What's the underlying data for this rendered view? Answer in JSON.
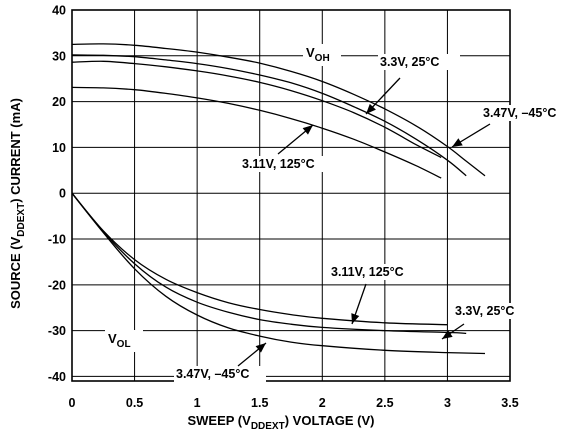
{
  "chart_data": {
    "type": "line",
    "xlabel": {
      "prefix": "SWEEP (V",
      "sub": "DDEXT",
      "suffix": ") VOLTAGE (V)"
    },
    "ylabel": {
      "prefix": "SOURCE  (V",
      "sub": "DDEXT",
      "suffix": ") CURRENT (mA)"
    },
    "xlim": [
      0,
      3.5
    ],
    "ylim": [
      -41,
      40
    ],
    "x_ticks": [
      "0",
      "0.5",
      "1",
      "1.5",
      "2",
      "2.5",
      "3",
      "3.5"
    ],
    "y_ticks": [
      "40",
      "30",
      "20",
      "10",
      "0",
      "-10",
      "-20",
      "-30",
      "-40"
    ],
    "grid": true,
    "region_labels": [
      {
        "main": "V",
        "sub": "OH"
      },
      {
        "main": "V",
        "sub": "OL"
      }
    ],
    "annotations": [
      {
        "text": "3.3V, 25°C"
      },
      {
        "text": "3.47V, –45°C"
      },
      {
        "text": "3.11V, 125°C"
      },
      {
        "text": "3.11V, 125°C"
      },
      {
        "text": "3.3V, 25°C"
      },
      {
        "text": "3.47V, –45°C"
      }
    ],
    "series": [
      {
        "group": "VOH",
        "x": [
          0,
          0.25,
          0.5,
          0.75,
          1.0,
          1.25,
          1.5,
          1.75,
          2.0,
          2.25,
          2.5,
          2.75,
          3.0,
          3.15,
          3.3
        ],
        "y": [
          32.5,
          32.6,
          32.3,
          31.6,
          30.8,
          29.7,
          28.4,
          26.6,
          24.4,
          21.6,
          18.4,
          14.7,
          10.2,
          7.0,
          3.8
        ]
      },
      {
        "group": "VOH",
        "x": [
          0,
          0.25,
          0.5,
          0.75,
          1.0,
          1.25,
          1.5,
          1.75,
          2.0,
          2.25,
          2.5,
          2.75,
          3.0,
          3.15
        ],
        "y": [
          30.2,
          30.1,
          29.8,
          29.1,
          28.3,
          27.2,
          25.8,
          24.1,
          21.8,
          18.9,
          15.7,
          11.8,
          7.2,
          3.8
        ]
      },
      {
        "group": "VOH",
        "x": [
          0,
          0.25,
          0.5,
          0.75,
          1.0,
          1.25,
          1.5,
          1.75,
          2.0,
          2.25,
          2.5,
          2.75,
          2.95
        ],
        "y": [
          28.6,
          28.8,
          28.3,
          27.6,
          26.7,
          25.6,
          24.2,
          22.4,
          20.2,
          17.6,
          14.4,
          10.6,
          7.8
        ]
      },
      {
        "group": "VOH",
        "x": [
          0,
          0.25,
          0.5,
          0.75,
          1.0,
          1.25,
          1.5,
          1.75,
          2.0,
          2.25,
          2.5,
          2.75,
          2.95
        ],
        "y": [
          23.1,
          23.0,
          22.6,
          21.8,
          20.8,
          19.6,
          18.1,
          16.3,
          14.2,
          11.8,
          9.0,
          6.0,
          3.3
        ]
      },
      {
        "group": "VOL",
        "x": [
          0,
          0.25,
          0.5,
          0.75,
          1.0,
          1.25,
          1.5,
          1.75,
          2.0,
          2.5,
          3.0,
          3.3
        ],
        "y": [
          0,
          -8.6,
          -16.5,
          -22.5,
          -26.6,
          -29.4,
          -31.2,
          -32.5,
          -33.3,
          -34.3,
          -34.8,
          -35.0
        ]
      },
      {
        "group": "VOL",
        "x": [
          0,
          0.25,
          0.5,
          0.75,
          1.0,
          1.25,
          1.5,
          1.75,
          2.0,
          2.5,
          3.0,
          3.15
        ],
        "y": [
          0,
          -8.4,
          -15.4,
          -20.5,
          -23.8,
          -26.0,
          -27.6,
          -28.6,
          -29.3,
          -30.0,
          -30.4,
          -30.6
        ]
      },
      {
        "group": "VOL",
        "x": [
          0,
          0.25,
          0.5,
          0.75,
          1.0,
          1.25,
          1.5,
          1.75,
          2.0,
          2.5,
          3.0
        ],
        "y": [
          0,
          -8.2,
          -14.5,
          -18.8,
          -21.7,
          -23.9,
          -25.4,
          -26.5,
          -27.3,
          -28.3,
          -28.7
        ]
      }
    ]
  }
}
